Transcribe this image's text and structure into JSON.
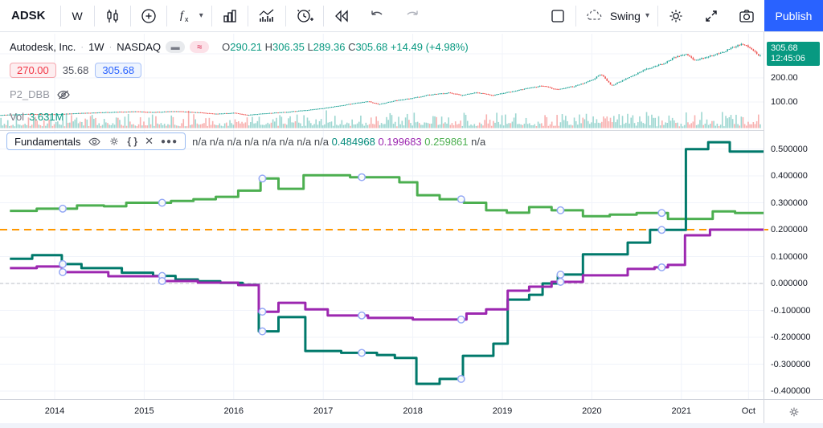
{
  "toolbar": {
    "symbol": "ADSK",
    "interval": "W",
    "swing_label": "Swing",
    "publish_label": "Publish"
  },
  "price_legend": {
    "title": "Autodesk, Inc.",
    "separator": "·",
    "interval": "1W",
    "exchange": "NASDAQ",
    "ohlc": {
      "o_label": "O",
      "o": "290.21",
      "h_label": "H",
      "h": "306.35",
      "l_label": "L",
      "l": "289.36",
      "c_label": "C",
      "c": "305.68",
      "change": "+14.49 (+4.98%)"
    }
  },
  "levels": {
    "lower": "270.00",
    "mid": "35.68",
    "upper": "305.68"
  },
  "p2dbb": {
    "label": "P2_DBB"
  },
  "volume": {
    "label": "Vol",
    "value": "3.631M"
  },
  "fundamentals": {
    "title": "Fundamentals",
    "na_values": [
      "n/a",
      "n/a",
      "n/a",
      "n/a",
      "n/a",
      "n/a",
      "n/a",
      "n/a"
    ],
    "teal_value": "0.484968",
    "purple_value": "0.199683",
    "green_value": "0.259861",
    "trailing_value": "n/a"
  },
  "axis": {
    "price_badge": {
      "price": "305.68",
      "countdown": "12:45:06"
    },
    "price_ticks": [
      {
        "label": "200.00",
        "y": 57
      },
      {
        "label": "100.00",
        "y": 87
      }
    ],
    "value_ticks": [
      {
        "label": "0.500000",
        "value": 0.5
      },
      {
        "label": "0.400000",
        "value": 0.4
      },
      {
        "label": "0.300000",
        "value": 0.3
      },
      {
        "label": "0.200000",
        "value": 0.2
      },
      {
        "label": "0.100000",
        "value": 0.1
      },
      {
        "label": "0.000000",
        "value": 0.0
      },
      {
        "label": "-0.100000",
        "value": -0.1
      },
      {
        "label": "-0.200000",
        "value": -0.2
      },
      {
        "label": "-0.300000",
        "value": -0.3
      },
      {
        "label": "-0.400000",
        "value": -0.4
      }
    ],
    "time_ticks": [
      "2014",
      "2015",
      "2016",
      "2017",
      "2018",
      "2019",
      "2020",
      "2021",
      "Oct"
    ]
  },
  "colors": {
    "accent_blue": "#2962ff",
    "up_green": "#089981",
    "down_red": "#f23645",
    "candle_up": "#26a69a",
    "candle_down": "#ef5350",
    "line_green": "#4caf50",
    "line_teal": "#00796b",
    "line_purple": "#9c27b0",
    "orange_level": "#ff9800",
    "marker_ring": "#94a8f5"
  },
  "chart_data": {
    "type": "mixed",
    "time_axis": {
      "start_year": 2013.4,
      "end_year": 2021.95,
      "tick_labels": [
        "2014",
        "2015",
        "2016",
        "2017",
        "2018",
        "2019",
        "2020",
        "2021",
        "Oct"
      ],
      "tick_years": [
        2014,
        2015,
        2016,
        2017,
        2018,
        2019,
        2020,
        2021,
        2021.75
      ],
      "grid": true
    },
    "price_pane": {
      "type": "candlestick",
      "title": "Autodesk, Inc. 1W NASDAQ",
      "ylabels_shown": [
        "200.00",
        "100.00"
      ],
      "price_gridlines": [
        300,
        200,
        100
      ],
      "last_close": 305.68,
      "change": 14.49,
      "change_pct": 4.98,
      "open": 290.21,
      "high": 306.35,
      "low": 289.36,
      "volume_shown": "3.631M",
      "close_anchors": [
        [
          2013.4,
          46
        ],
        [
          2013.7,
          50
        ],
        [
          2014.0,
          49
        ],
        [
          2014.3,
          54
        ],
        [
          2014.6,
          58
        ],
        [
          2014.9,
          61
        ],
        [
          2015.1,
          58
        ],
        [
          2015.35,
          62
        ],
        [
          2015.6,
          57
        ],
        [
          2015.8,
          51
        ],
        [
          2016.0,
          55
        ],
        [
          2016.15,
          46
        ],
        [
          2016.35,
          53
        ],
        [
          2016.6,
          59
        ],
        [
          2016.8,
          66
        ],
        [
          2017.0,
          74
        ],
        [
          2017.2,
          86
        ],
        [
          2017.4,
          98
        ],
        [
          2017.5,
          103
        ],
        [
          2017.62,
          90
        ],
        [
          2017.8,
          106
        ],
        [
          2018.0,
          116
        ],
        [
          2018.2,
          131
        ],
        [
          2018.4,
          138
        ],
        [
          2018.55,
          128
        ],
        [
          2018.7,
          140
        ],
        [
          2018.9,
          128
        ],
        [
          2019.05,
          140
        ],
        [
          2019.25,
          155
        ],
        [
          2019.45,
          168
        ],
        [
          2019.6,
          152
        ],
        [
          2019.8,
          165
        ],
        [
          2020.0,
          190
        ],
        [
          2020.1,
          215
        ],
        [
          2020.22,
          168
        ],
        [
          2020.4,
          200
        ],
        [
          2020.6,
          235
        ],
        [
          2020.8,
          260
        ],
        [
          2020.95,
          290
        ],
        [
          2021.05,
          300
        ],
        [
          2021.15,
          272
        ],
        [
          2021.3,
          288
        ],
        [
          2021.45,
          305
        ],
        [
          2021.6,
          330
        ],
        [
          2021.7,
          342
        ],
        [
          2021.8,
          312
        ],
        [
          2021.87,
          292
        ],
        [
          2021.95,
          306
        ]
      ]
    },
    "indicator_pane": {
      "type": "step_line",
      "name": "Fundamentals",
      "ylim": [
        -0.42,
        0.57
      ],
      "tick_step": 0.1,
      "grid": true,
      "reference_lines": [
        {
          "value": 0.2,
          "style": "dashed",
          "color": "#ff9800"
        },
        {
          "value": 0.0,
          "style": "dashed",
          "color": "#9598a1"
        }
      ],
      "marker_years": [
        2014.09,
        2015.2,
        2016.32,
        2017.43,
        2018.54,
        2019.65,
        2020.78
      ],
      "series": [
        {
          "name": "green",
          "color": "#4caf50",
          "last_value": 0.259861,
          "points": [
            [
              2013.5,
              0.27
            ],
            [
              2013.8,
              0.278
            ],
            [
              2014.25,
              0.29
            ],
            [
              2014.55,
              0.287
            ],
            [
              2014.8,
              0.3
            ],
            [
              2015.3,
              0.307
            ],
            [
              2015.55,
              0.313
            ],
            [
              2015.8,
              0.322
            ],
            [
              2016.05,
              0.345
            ],
            [
              2016.3,
              0.39
            ],
            [
              2016.5,
              0.352
            ],
            [
              2016.78,
              0.402
            ],
            [
              2017.3,
              0.395
            ],
            [
              2017.85,
              0.376
            ],
            [
              2018.05,
              0.328
            ],
            [
              2018.3,
              0.313
            ],
            [
              2018.57,
              0.3
            ],
            [
              2018.82,
              0.272
            ],
            [
              2019.05,
              0.263
            ],
            [
              2019.3,
              0.284
            ],
            [
              2019.55,
              0.272
            ],
            [
              2019.9,
              0.25
            ],
            [
              2020.2,
              0.256
            ],
            [
              2020.5,
              0.262
            ],
            [
              2020.85,
              0.24
            ],
            [
              2021.35,
              0.268
            ],
            [
              2021.6,
              0.262
            ],
            [
              2021.95,
              0.26
            ]
          ]
        },
        {
          "name": "teal",
          "color": "#00796b",
          "last_value": 0.484968,
          "points": [
            [
              2013.5,
              0.092
            ],
            [
              2013.75,
              0.105
            ],
            [
              2014.08,
              0.072
            ],
            [
              2014.3,
              0.057
            ],
            [
              2014.75,
              0.04
            ],
            [
              2015.1,
              0.028
            ],
            [
              2015.35,
              0.015
            ],
            [
              2015.6,
              0.008
            ],
            [
              2015.85,
              0.002
            ],
            [
              2016.1,
              -0.005
            ],
            [
              2016.28,
              -0.178
            ],
            [
              2016.5,
              -0.125
            ],
            [
              2016.8,
              -0.251
            ],
            [
              2017.2,
              -0.258
            ],
            [
              2017.6,
              -0.266
            ],
            [
              2017.8,
              -0.277
            ],
            [
              2018.04,
              -0.373
            ],
            [
              2018.3,
              -0.355
            ],
            [
              2018.56,
              -0.269
            ],
            [
              2018.9,
              -0.224
            ],
            [
              2019.06,
              -0.06
            ],
            [
              2019.3,
              -0.042
            ],
            [
              2019.45,
              0.0
            ],
            [
              2019.62,
              0.033
            ],
            [
              2019.9,
              0.108
            ],
            [
              2020.4,
              0.152
            ],
            [
              2020.65,
              0.199
            ],
            [
              2021.05,
              0.499
            ],
            [
              2021.3,
              0.525
            ],
            [
              2021.54,
              0.49
            ],
            [
              2021.95,
              0.485
            ]
          ]
        },
        {
          "name": "purple",
          "color": "#9c27b0",
          "last_value": 0.199683,
          "points": [
            [
              2013.5,
              0.057
            ],
            [
              2013.8,
              0.063
            ],
            [
              2014.08,
              0.042
            ],
            [
              2014.6,
              0.027
            ],
            [
              2015.2,
              0.009
            ],
            [
              2015.6,
              0.003
            ],
            [
              2016.05,
              -0.006
            ],
            [
              2016.28,
              -0.105
            ],
            [
              2016.5,
              -0.072
            ],
            [
              2016.8,
              -0.096
            ],
            [
              2017.05,
              -0.119
            ],
            [
              2017.5,
              -0.128
            ],
            [
              2018.0,
              -0.134
            ],
            [
              2018.6,
              -0.112
            ],
            [
              2018.82,
              -0.096
            ],
            [
              2019.06,
              -0.027
            ],
            [
              2019.3,
              -0.012
            ],
            [
              2019.55,
              0.006
            ],
            [
              2019.9,
              0.03
            ],
            [
              2020.4,
              0.054
            ],
            [
              2020.7,
              0.06
            ],
            [
              2020.85,
              0.069
            ],
            [
              2021.04,
              0.179
            ],
            [
              2021.32,
              0.2
            ],
            [
              2021.95,
              0.1997
            ]
          ]
        }
      ]
    }
  }
}
